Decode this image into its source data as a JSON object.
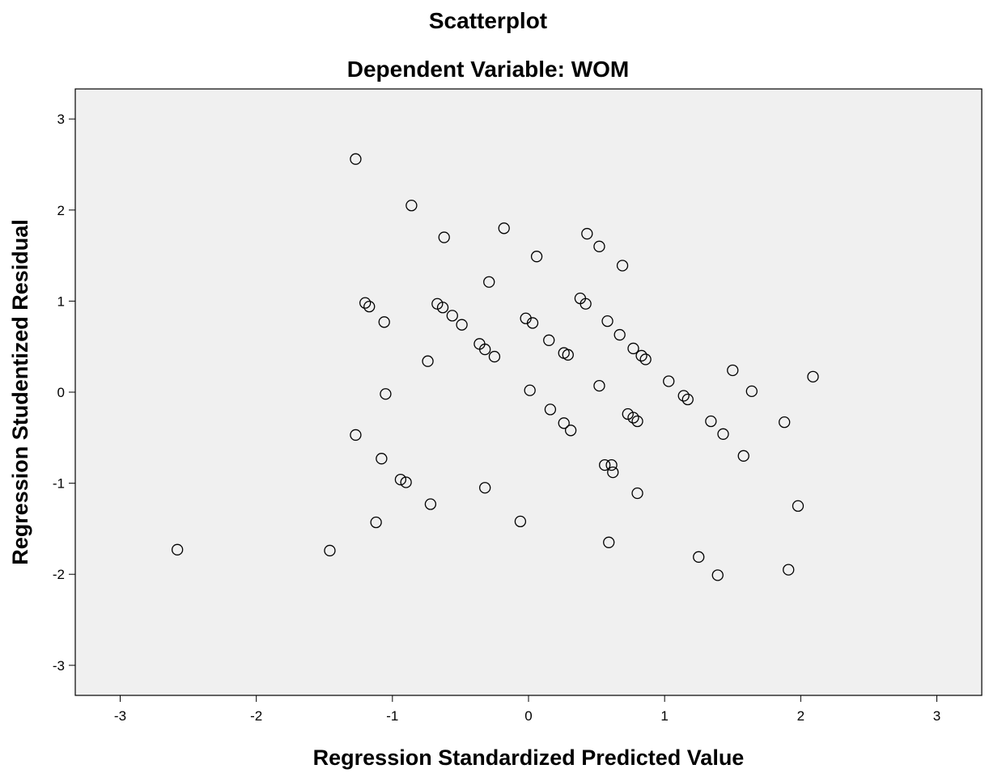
{
  "chart_data": {
    "type": "scatter",
    "title": "Scatterplot",
    "subtitle": "Dependent Variable: WOM",
    "xlabel": "Regression Standardized Predicted Value",
    "ylabel": "Regression Studentized Residual",
    "xlim": [
      -3.33,
      3.33
    ],
    "ylim": [
      -3.33,
      3.33
    ],
    "x_ticks": [
      -3,
      -2,
      -1,
      0,
      1,
      2,
      3
    ],
    "y_ticks": [
      -3,
      -2,
      -1,
      0,
      1,
      2,
      3
    ],
    "x_tick_labels": [
      "-3",
      "-2",
      "-1",
      "0",
      "1",
      "2",
      "3"
    ],
    "y_tick_labels": [
      "-3",
      "-2",
      "-1",
      "0",
      "1",
      "2",
      "3"
    ],
    "grid": false,
    "colors": {
      "plot_background": "#f0f0f0",
      "marker": "#000000"
    },
    "points": [
      {
        "x": -2.58,
        "y": -1.73
      },
      {
        "x": -1.46,
        "y": -1.74
      },
      {
        "x": -1.27,
        "y": 2.56
      },
      {
        "x": -1.27,
        "y": -0.47
      },
      {
        "x": -1.2,
        "y": 0.98
      },
      {
        "x": -1.17,
        "y": 0.94
      },
      {
        "x": -1.12,
        "y": -1.43
      },
      {
        "x": -1.08,
        "y": -0.73
      },
      {
        "x": -1.06,
        "y": 0.77
      },
      {
        "x": -1.05,
        "y": -0.02
      },
      {
        "x": -0.94,
        "y": -0.96
      },
      {
        "x": -0.9,
        "y": -0.99
      },
      {
        "x": -0.86,
        "y": 2.05
      },
      {
        "x": -0.74,
        "y": 0.34
      },
      {
        "x": -0.72,
        "y": -1.23
      },
      {
        "x": -0.67,
        "y": 0.97
      },
      {
        "x": -0.63,
        "y": 0.93
      },
      {
        "x": -0.62,
        "y": 1.7
      },
      {
        "x": -0.56,
        "y": 0.84
      },
      {
        "x": -0.49,
        "y": 0.74
      },
      {
        "x": -0.36,
        "y": 0.53
      },
      {
        "x": -0.32,
        "y": 0.47
      },
      {
        "x": -0.32,
        "y": -1.05
      },
      {
        "x": -0.29,
        "y": 1.21
      },
      {
        "x": -0.25,
        "y": 0.39
      },
      {
        "x": -0.18,
        "y": 1.8
      },
      {
        "x": -0.06,
        "y": -1.42
      },
      {
        "x": -0.02,
        "y": 0.81
      },
      {
        "x": 0.01,
        "y": 0.02
      },
      {
        "x": 0.03,
        "y": 0.76
      },
      {
        "x": 0.06,
        "y": 1.49
      },
      {
        "x": 0.15,
        "y": 0.57
      },
      {
        "x": 0.16,
        "y": -0.19
      },
      {
        "x": 0.26,
        "y": -0.34
      },
      {
        "x": 0.26,
        "y": 0.43
      },
      {
        "x": 0.29,
        "y": 0.41
      },
      {
        "x": 0.31,
        "y": -0.42
      },
      {
        "x": 0.38,
        "y": 1.03
      },
      {
        "x": 0.42,
        "y": 0.97
      },
      {
        "x": 0.43,
        "y": 1.74
      },
      {
        "x": 0.52,
        "y": 1.6
      },
      {
        "x": 0.52,
        "y": 0.07
      },
      {
        "x": 0.56,
        "y": -0.8
      },
      {
        "x": 0.58,
        "y": 0.78
      },
      {
        "x": 0.59,
        "y": -1.65
      },
      {
        "x": 0.61,
        "y": -0.8
      },
      {
        "x": 0.62,
        "y": -0.88
      },
      {
        "x": 0.67,
        "y": 0.63
      },
      {
        "x": 0.69,
        "y": 1.39
      },
      {
        "x": 0.73,
        "y": -0.24
      },
      {
        "x": 0.77,
        "y": 0.48
      },
      {
        "x": 0.77,
        "y": -0.28
      },
      {
        "x": 0.8,
        "y": -0.32
      },
      {
        "x": 0.8,
        "y": -1.11
      },
      {
        "x": 0.83,
        "y": 0.4
      },
      {
        "x": 0.86,
        "y": 0.36
      },
      {
        "x": 1.03,
        "y": 0.12
      },
      {
        "x": 1.14,
        "y": -0.04
      },
      {
        "x": 1.17,
        "y": -0.08
      },
      {
        "x": 1.25,
        "y": -1.81
      },
      {
        "x": 1.34,
        "y": -0.32
      },
      {
        "x": 1.39,
        "y": -2.01
      },
      {
        "x": 1.43,
        "y": -0.46
      },
      {
        "x": 1.5,
        "y": 0.24
      },
      {
        "x": 1.58,
        "y": -0.7
      },
      {
        "x": 1.64,
        "y": 0.01
      },
      {
        "x": 1.88,
        "y": -0.33
      },
      {
        "x": 1.91,
        "y": -1.95
      },
      {
        "x": 1.98,
        "y": -1.25
      },
      {
        "x": 2.09,
        "y": 0.17
      }
    ]
  }
}
